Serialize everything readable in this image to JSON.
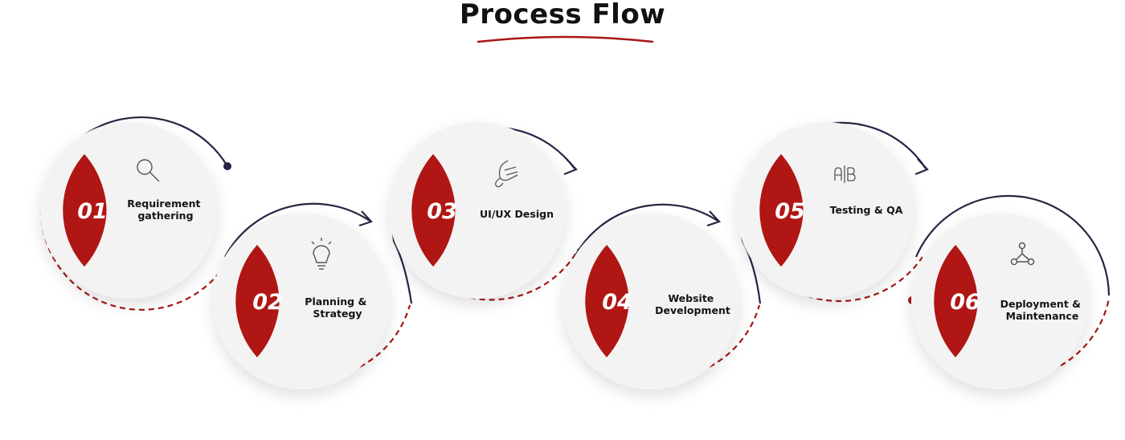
{
  "title": "Process Flow",
  "colors": {
    "accent": "#a81514",
    "connector": "#262644",
    "circle": "#f3f3f3",
    "icon": "#555555"
  },
  "steps": [
    {
      "number": "01",
      "label_lines": [
        "Requirement",
        "gathering"
      ],
      "icon": "search-icon"
    },
    {
      "number": "02",
      "label_lines": [
        "Planning &",
        "Strategy"
      ],
      "icon": "lightbulb-icon"
    },
    {
      "number": "03",
      "label_lines": [
        "UI/UX Design"
      ],
      "icon": "hand-drawing-icon"
    },
    {
      "number": "04",
      "label_lines": [
        "Website",
        "Development"
      ],
      "icon": "none"
    },
    {
      "number": "05",
      "label_lines": [
        "Testing & QA"
      ],
      "icon": "ab-test-icon"
    },
    {
      "number": "06",
      "label_lines": [
        "Deployment &",
        "Maintenance"
      ],
      "icon": "network-nodes-icon"
    }
  ]
}
